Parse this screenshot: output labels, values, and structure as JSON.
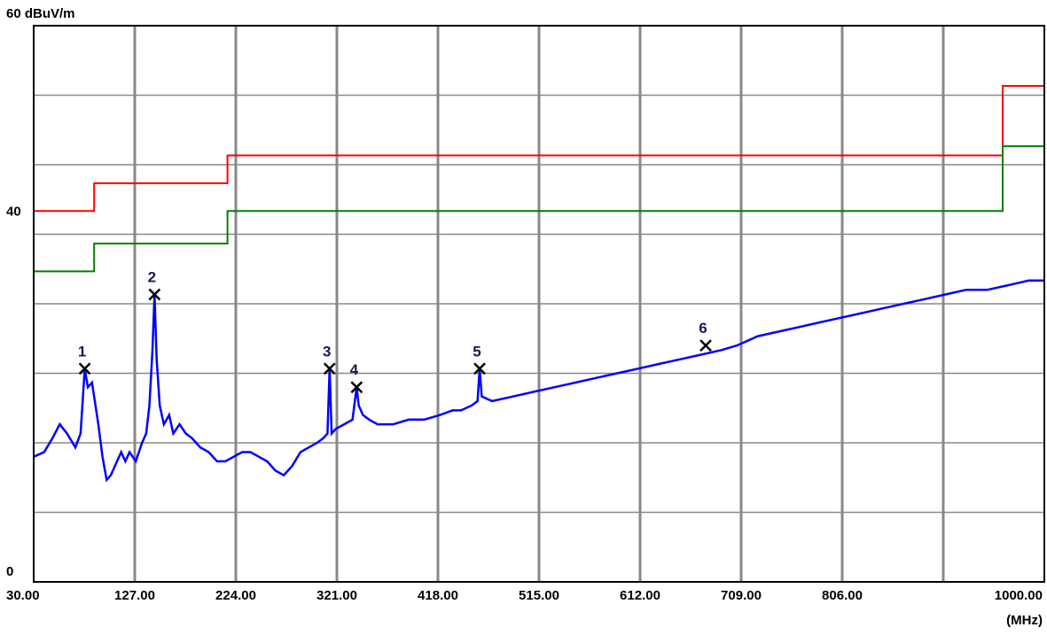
{
  "chart_data": {
    "type": "line",
    "ylabel_top": "60 dBuV/m",
    "ytick_labels": [
      {
        "value": 60,
        "label": "60 dBuV/m"
      },
      {
        "value": 40,
        "label": "40"
      },
      {
        "value": 0,
        "label": "0"
      }
    ],
    "xunit": "(MHz)",
    "xlim": [
      30,
      1000
    ],
    "ylim": [
      0,
      60
    ],
    "x_ticks": [
      {
        "value": 30,
        "label": "30.00"
      },
      {
        "value": 127,
        "label": "127.00"
      },
      {
        "value": 224,
        "label": "224.00"
      },
      {
        "value": 321,
        "label": "321.00"
      },
      {
        "value": 418,
        "label": "418.00"
      },
      {
        "value": 515,
        "label": "515.00"
      },
      {
        "value": 612,
        "label": "612.00"
      },
      {
        "value": 709,
        "label": "709.00"
      },
      {
        "value": 806,
        "label": "806.00"
      },
      {
        "value": 1000,
        "label": "1000.00"
      }
    ],
    "grid": true,
    "series": [
      {
        "color": "#ff0000",
        "step": true,
        "points": [
          [
            30,
            40
          ],
          [
            88,
            40
          ],
          [
            88,
            43
          ],
          [
            216,
            43
          ],
          [
            216,
            46
          ],
          [
            960,
            46
          ],
          [
            960,
            53.5
          ],
          [
            1000,
            53.5
          ]
        ]
      },
      {
        "color": "#008000",
        "step": true,
        "points": [
          [
            30,
            33.5
          ],
          [
            88,
            33.5
          ],
          [
            88,
            36.5
          ],
          [
            216,
            36.5
          ],
          [
            216,
            40
          ],
          [
            960,
            40
          ],
          [
            960,
            47
          ],
          [
            1000,
            47
          ]
        ]
      },
      {
        "color": "#0000ff",
        "points": [
          [
            30,
            13.5
          ],
          [
            40,
            14
          ],
          [
            48,
            15.5
          ],
          [
            55,
            17
          ],
          [
            62,
            16
          ],
          [
            70,
            14.5
          ],
          [
            75,
            16
          ],
          [
            79,
            23
          ],
          [
            82,
            21
          ],
          [
            86,
            21.5
          ],
          [
            92,
            17
          ],
          [
            96,
            13.5
          ],
          [
            100,
            11
          ],
          [
            104,
            11.5
          ],
          [
            110,
            13
          ],
          [
            114,
            14
          ],
          [
            118,
            13
          ],
          [
            122,
            14
          ],
          [
            128,
            13
          ],
          [
            134,
            15
          ],
          [
            138,
            16
          ],
          [
            141,
            19
          ],
          [
            144,
            25
          ],
          [
            146,
            31
          ],
          [
            148,
            24
          ],
          [
            151,
            19
          ],
          [
            155,
            17
          ],
          [
            160,
            18
          ],
          [
            164,
            16
          ],
          [
            170,
            17
          ],
          [
            176,
            16
          ],
          [
            182,
            15.5
          ],
          [
            190,
            14.5
          ],
          [
            198,
            14
          ],
          [
            206,
            13
          ],
          [
            214,
            13
          ],
          [
            222,
            13.5
          ],
          [
            230,
            14
          ],
          [
            238,
            14
          ],
          [
            246,
            13.5
          ],
          [
            254,
            13
          ],
          [
            262,
            12
          ],
          [
            270,
            11.5
          ],
          [
            278,
            12.5
          ],
          [
            286,
            14
          ],
          [
            294,
            14.5
          ],
          [
            302,
            15
          ],
          [
            308,
            15.5
          ],
          [
            312,
            16
          ],
          [
            314,
            23
          ],
          [
            316,
            16
          ],
          [
            320,
            16.5
          ],
          [
            328,
            17
          ],
          [
            336,
            17.5
          ],
          [
            340,
            21
          ],
          [
            342,
            19
          ],
          [
            346,
            18
          ],
          [
            352,
            17.5
          ],
          [
            360,
            17
          ],
          [
            375,
            17
          ],
          [
            390,
            17.5
          ],
          [
            405,
            17.5
          ],
          [
            420,
            18
          ],
          [
            432,
            18.5
          ],
          [
            440,
            18.5
          ],
          [
            450,
            19
          ],
          [
            456,
            19.5
          ],
          [
            458,
            23
          ],
          [
            460,
            20
          ],
          [
            470,
            19.5
          ],
          [
            490,
            20
          ],
          [
            510,
            20.5
          ],
          [
            530,
            21
          ],
          [
            550,
            21.5
          ],
          [
            570,
            22
          ],
          [
            590,
            22.5
          ],
          [
            610,
            23
          ],
          [
            630,
            23.5
          ],
          [
            650,
            24
          ],
          [
            670,
            24.5
          ],
          [
            690,
            25
          ],
          [
            705,
            25.5
          ],
          [
            725,
            26.5
          ],
          [
            745,
            27
          ],
          [
            765,
            27.5
          ],
          [
            785,
            28
          ],
          [
            805,
            28.5
          ],
          [
            825,
            29
          ],
          [
            845,
            29.5
          ],
          [
            865,
            30
          ],
          [
            885,
            30.5
          ],
          [
            905,
            31
          ],
          [
            925,
            31.5
          ],
          [
            945,
            31.5
          ],
          [
            965,
            32
          ],
          [
            985,
            32.5
          ],
          [
            1000,
            32.5
          ]
        ]
      }
    ],
    "markers": [
      {
        "label": "1",
        "x": 79,
        "y": 23
      },
      {
        "label": "2",
        "x": 146,
        "y": 31
      },
      {
        "label": "3",
        "x": 314,
        "y": 23
      },
      {
        "label": "4",
        "x": 340,
        "y": 21
      },
      {
        "label": "5",
        "x": 458,
        "y": 23
      },
      {
        "label": "6",
        "x": 675,
        "y": 25.5
      }
    ]
  }
}
